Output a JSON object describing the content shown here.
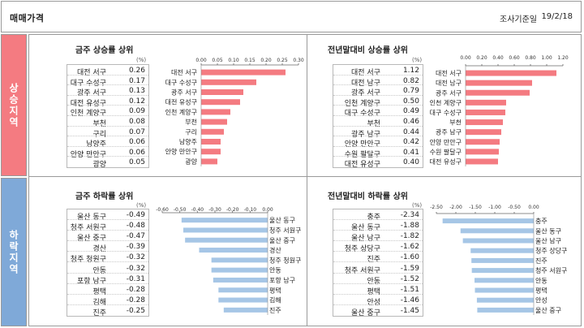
{
  "header": {
    "title": "매매가격",
    "date_label": "조사기준일",
    "date": "19/2/18"
  },
  "side_labels": {
    "up": "상승지역",
    "down": "하락지역"
  },
  "colors": {
    "up_bar": "#f47b81",
    "down_bar": "#a6c6e6"
  },
  "panels": [
    {
      "title": "금주 상승률 상위",
      "unit": "(%)"
    },
    {
      "title": "전년말대비 상승률 상위",
      "unit": "(%)"
    },
    {
      "title": "금주 하락률 상위",
      "unit": "(%)"
    },
    {
      "title": "전년말대비 하락률 상위",
      "unit": "(%)"
    }
  ],
  "chart_data": [
    {
      "type": "bar",
      "orientation": "horizontal",
      "categories": [
        "대전 서구",
        "대구 수성구",
        "광주 서구",
        "대전 유성구",
        "인천 계양구",
        "부천",
        "구리",
        "남양주",
        "안양 만안구",
        "광양"
      ],
      "values": [
        0.26,
        0.17,
        0.13,
        0.12,
        0.09,
        0.08,
        0.07,
        0.06,
        0.06,
        0.05
      ],
      "value_labels": [
        "0.26",
        "0.17",
        "0.13",
        "0.12",
        "0.09",
        "0.08",
        "0.07",
        "0.06",
        "0.06",
        "0.05"
      ],
      "xlim": [
        0,
        0.3
      ],
      "ticks": [
        0.0,
        0.05,
        0.1,
        0.15,
        0.2,
        0.25,
        0.3
      ],
      "tick_labels": [
        "0.00",
        "0.05",
        "0.10",
        "0.15",
        "0.20",
        "0.25",
        "0.30"
      ],
      "axis_position": "top",
      "grid": false
    },
    {
      "type": "bar",
      "orientation": "horizontal",
      "categories": [
        "대전 서구",
        "대전 남구",
        "광주 서구",
        "인천 계양구",
        "대구 수성구",
        "부천",
        "광주 남구",
        "안양 만안구",
        "수원 팔달구",
        "대전 유성구"
      ],
      "values": [
        1.12,
        0.82,
        0.79,
        0.5,
        0.49,
        0.46,
        0.44,
        0.42,
        0.41,
        0.4
      ],
      "value_labels": [
        "1.12",
        "0.82",
        "0.79",
        "0.50",
        "0.49",
        "0.46",
        "0.44",
        "0.42",
        "0.41",
        "0.40"
      ],
      "xlim": [
        0,
        1.2
      ],
      "ticks": [
        0.0,
        0.2,
        0.4,
        0.6,
        0.8,
        1.0,
        1.2
      ],
      "tick_labels": [
        "0.00",
        "0.20",
        "0.40",
        "0.60",
        "0.80",
        "1.00",
        "1.20"
      ],
      "axis_position": "top",
      "grid": false
    },
    {
      "type": "bar",
      "orientation": "horizontal",
      "categories": [
        "울산 동구",
        "청주 서원구",
        "울산 중구",
        "경산",
        "청주 청원구",
        "안동",
        "포항 남구",
        "평택",
        "김해",
        "진주"
      ],
      "values": [
        -0.49,
        -0.48,
        -0.47,
        -0.39,
        -0.32,
        -0.32,
        -0.31,
        -0.28,
        -0.28,
        -0.25
      ],
      "value_labels": [
        "-0.49",
        "-0.48",
        "-0.47",
        "-0.39",
        "-0.32",
        "-0.32",
        "-0.31",
        "-0.28",
        "-0.28",
        "-0.25"
      ],
      "xlim": [
        -0.6,
        0.0
      ],
      "ticks": [
        -0.6,
        -0.5,
        -0.4,
        -0.3,
        -0.2,
        -0.1,
        0.0
      ],
      "tick_labels": [
        "-0.60",
        "-0.50",
        "-0.40",
        "-0.30",
        "-0.20",
        "-0.10",
        "0.00"
      ],
      "axis_position": "top",
      "grid": false
    },
    {
      "type": "bar",
      "orientation": "horizontal",
      "categories": [
        "충주",
        "울산 동구",
        "울산 남구",
        "청주 상당구",
        "진주",
        "청주 서원구",
        "안동",
        "평택",
        "안성",
        "울산 중구"
      ],
      "values": [
        -2.34,
        -1.88,
        -1.82,
        -1.62,
        -1.6,
        -1.59,
        -1.52,
        -1.51,
        -1.46,
        -1.45
      ],
      "value_labels": [
        "-2.34",
        "-1.88",
        "-1.82",
        "-1.62",
        "-1.60",
        "-1.59",
        "-1.52",
        "-1.51",
        "-1.46",
        "-1.45"
      ],
      "xlim": [
        -2.5,
        0.0
      ],
      "ticks": [
        -2.5,
        -2.0,
        -1.5,
        -1.0,
        -0.5,
        0.0
      ],
      "tick_labels": [
        "-2.50",
        "-2.00",
        "-1.50",
        "-1.00",
        "-0.50",
        "0.00"
      ],
      "axis_position": "top",
      "grid": false
    }
  ]
}
